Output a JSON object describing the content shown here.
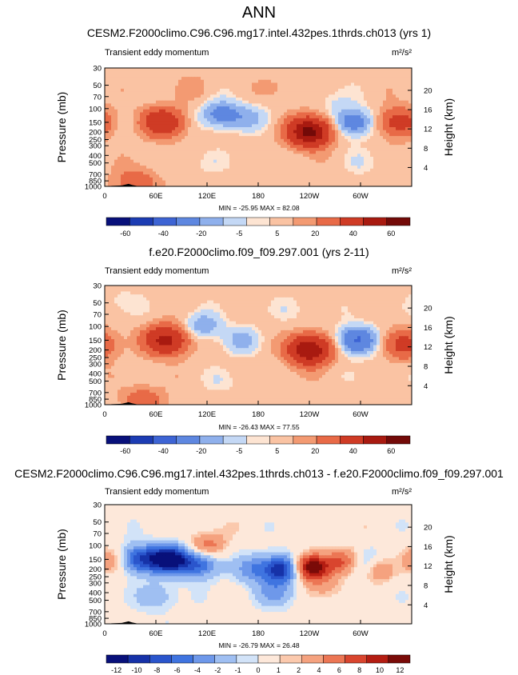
{
  "figure_title": "ANN",
  "chart_data": [
    {
      "type": "heatmap",
      "title": "CESM2.F2000climo.C96.C96.mg17.intel.432pes.1thrds.ch013 (yrs 1)",
      "subtitle": "Transient eddy momentum",
      "units": "m²/s²",
      "ylabel": "Pressure (mb)",
      "ylabel_right": "Height (km)",
      "x_ticks": [
        "0",
        "60E",
        "120E",
        "180",
        "120W",
        "60W"
      ],
      "y_ticks": [
        "30",
        "50",
        "70",
        "100",
        "150",
        "200",
        "250",
        "300",
        "400",
        "500",
        "700",
        "850",
        "1000"
      ],
      "height_ticks": [
        "20",
        "16",
        "12",
        "8",
        "4"
      ],
      "stats": "MIN = -25.95  MAX =  82.08",
      "colorbar_labels": [
        "-60",
        "-40",
        "-20",
        "-5",
        "5",
        "20",
        "40",
        "60"
      ],
      "blobs": [
        {
          "lon": 68,
          "p": 150,
          "v": 35
        },
        {
          "lon": 345,
          "p": 150,
          "v": 25
        },
        {
          "lon": 105,
          "p": 55,
          "v": 3
        },
        {
          "lon": 205,
          "p": 55,
          "v": 3
        },
        {
          "lon": 240,
          "p": 200,
          "v": 65
        },
        {
          "lon": 137,
          "p": 120,
          "v": -18
        },
        {
          "lon": 170,
          "p": 130,
          "v": -8
        },
        {
          "lon": 292,
          "p": 150,
          "v": -20
        },
        {
          "lon": 270,
          "p": 80,
          "v": -4
        },
        {
          "lon": 35,
          "p": 900,
          "v": 15
        },
        {
          "lon": 120,
          "p": 500,
          "v": -3
        },
        {
          "lon": 300,
          "p": 500,
          "v": -3
        }
      ],
      "bg_value": 3,
      "scale": "abs"
    },
    {
      "type": "heatmap",
      "title": "f.e20.F2000climo.f09_f09.297.001 (yrs 2-11)",
      "subtitle": "Transient eddy momentum",
      "units": "m²/s²",
      "ylabel": "Pressure (mb)",
      "ylabel_right": "Height (km)",
      "x_ticks": [
        "0",
        "60E",
        "120E",
        "180",
        "120W",
        "60W"
      ],
      "y_ticks": [
        "30",
        "50",
        "70",
        "100",
        "150",
        "200",
        "250",
        "300",
        "400",
        "500",
        "700",
        "850",
        "1000"
      ],
      "height_ticks": [
        "20",
        "16",
        "12",
        "8",
        "4"
      ],
      "stats": "MIN = -26.43  MAX =  77.55",
      "colorbar_labels": [
        "-60",
        "-40",
        "-20",
        "-5",
        "5",
        "20",
        "40",
        "60"
      ],
      "blobs": [
        {
          "lon": 72,
          "p": 150,
          "v": 45
        },
        {
          "lon": 350,
          "p": 170,
          "v": 22
        },
        {
          "lon": 240,
          "p": 200,
          "v": 58
        },
        {
          "lon": 115,
          "p": 100,
          "v": -12
        },
        {
          "lon": 160,
          "p": 150,
          "v": -9
        },
        {
          "lon": 295,
          "p": 150,
          "v": -25
        },
        {
          "lon": 20,
          "p": 50,
          "v": -4
        },
        {
          "lon": 220,
          "p": 60,
          "v": -3
        },
        {
          "lon": 45,
          "p": 900,
          "v": 14
        },
        {
          "lon": 140,
          "p": 500,
          "v": -3
        },
        {
          "lon": 320,
          "p": 450,
          "v": -3
        }
      ],
      "bg_value": 3,
      "scale": "abs"
    },
    {
      "type": "heatmap",
      "title": "CESM2.F2000climo.C96.C96.mg17.intel.432pes.1thrds.ch013 - f.e20.F2000climo.f09_f09.297.001",
      "subtitle": "Transient eddy momentum",
      "units": "m²/s²",
      "ylabel": "Pressure (mb)",
      "ylabel_right": "Height (km)",
      "x_ticks": [
        "0",
        "60E",
        "120E",
        "180",
        "120W",
        "60W"
      ],
      "y_ticks": [
        "30",
        "50",
        "70",
        "100",
        "150",
        "200",
        "250",
        "300",
        "400",
        "500",
        "700",
        "850",
        "1000"
      ],
      "height_ticks": [
        "20",
        "16",
        "12",
        "8",
        "4"
      ],
      "stats": "MIN = -26.79  MAX =  26.48",
      "colorbar_labels": [
        "-12",
        "-10",
        "-8",
        "-6",
        "-4",
        "-2",
        "-1",
        "0",
        "1",
        "2",
        "4",
        "6",
        "8",
        "10",
        "12"
      ],
      "blobs": [
        {
          "lon": 40,
          "p": 150,
          "v": -9
        },
        {
          "lon": 75,
          "p": 150,
          "v": -14
        },
        {
          "lon": 110,
          "p": 170,
          "v": -8
        },
        {
          "lon": 175,
          "p": 200,
          "v": -5
        },
        {
          "lon": 210,
          "p": 200,
          "v": -12
        },
        {
          "lon": 240,
          "p": 190,
          "v": 14
        },
        {
          "lon": 285,
          "p": 160,
          "v": 8
        },
        {
          "lon": 305,
          "p": 170,
          "v": -8
        },
        {
          "lon": 322,
          "p": 190,
          "v": 9
        },
        {
          "lon": 345,
          "p": 170,
          "v": -6
        },
        {
          "lon": 360,
          "p": 160,
          "v": 8
        },
        {
          "lon": 120,
          "p": 100,
          "v": 6
        },
        {
          "lon": 200,
          "p": 400,
          "v": -4
        },
        {
          "lon": 60,
          "p": 450,
          "v": -3
        },
        {
          "lon": 260,
          "p": 350,
          "v": 3
        },
        {
          "lon": 150,
          "p": 55,
          "v": 1
        },
        {
          "lon": 300,
          "p": 60,
          "v": 1
        }
      ],
      "bg_value": -0.5,
      "scale": "diff"
    }
  ],
  "palette_abs": [
    "#08107a",
    "#1c3cb3",
    "#3d64d4",
    "#5e87e0",
    "#8fb0ec",
    "#c4d8f5",
    "#fde4d2",
    "#fac3a3",
    "#f39a72",
    "#e86a47",
    "#cf3b25",
    "#a81a10",
    "#730a08"
  ],
  "palette_diff": [
    "#08107a",
    "#1632a8",
    "#2a55cc",
    "#3f74e0",
    "#6e98ea",
    "#9fbff2",
    "#d2e3f8",
    "#fde8da",
    "#fbc9ad",
    "#f5a27f",
    "#ec7654",
    "#d9452e",
    "#b41d12",
    "#7a0b08"
  ]
}
